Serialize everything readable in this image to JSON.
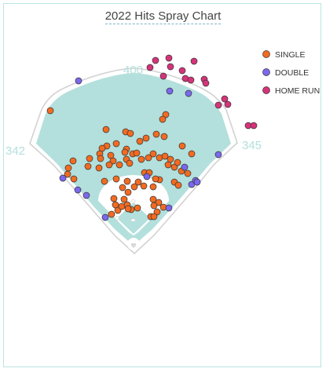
{
  "chart_data": {
    "type": "scatter",
    "title": "2022 Hits Spray Chart",
    "field_distances": {
      "left_field": "342",
      "center_field": "400",
      "right_field": "345"
    },
    "legend_placement": "top-right",
    "colors": {
      "SINGLE": "#f26b21",
      "DOUBLE": "#7b68ee",
      "HOME RUN": "#d6337a",
      "field": "#b3e0dc",
      "frame": "#b9e3e0"
    },
    "series": [
      {
        "name": "SINGLE",
        "points": [
          [
            64,
            141
          ],
          [
            135,
            165
          ],
          [
            160,
            168
          ],
          [
            166,
            170
          ],
          [
            211,
            146
          ],
          [
            207,
            152
          ],
          [
            199,
            171
          ],
          [
            209,
            174
          ],
          [
            232,
            186
          ],
          [
            244,
            196
          ],
          [
            178,
            180
          ],
          [
            186,
            176
          ],
          [
            136,
            186
          ],
          [
            148,
            183
          ],
          [
            161,
            190
          ],
          [
            169,
            196
          ],
          [
            130,
            189
          ],
          [
            127,
            196
          ],
          [
            114,
            202
          ],
          [
            128,
            202
          ],
          [
            141,
            198
          ],
          [
            159,
            194
          ],
          [
            144,
            205
          ],
          [
            139,
            210
          ],
          [
            126,
            214
          ],
          [
            152,
            210
          ],
          [
            161,
            203
          ],
          [
            165,
            208
          ],
          [
            174,
            195
          ],
          [
            180,
            203
          ],
          [
            189,
            201
          ],
          [
            195,
            196
          ],
          [
            203,
            201
          ],
          [
            210,
            199
          ],
          [
            217,
            203
          ],
          [
            214,
            210
          ],
          [
            222,
            213
          ],
          [
            231,
            218
          ],
          [
            239,
            221
          ],
          [
            226,
            207
          ],
          [
            87,
            214
          ],
          [
            93,
            205
          ],
          [
            86,
            222
          ],
          [
            94,
            228
          ],
          [
            112,
            212
          ],
          [
            133,
            231
          ],
          [
            148,
            228
          ],
          [
            162,
            231
          ],
          [
            176,
            232
          ],
          [
            183,
            237
          ],
          [
            195,
            238
          ],
          [
            203,
            229
          ],
          [
            222,
            232
          ],
          [
            227,
            236
          ],
          [
            156,
            239
          ],
          [
            171,
            238
          ],
          [
            163,
            245
          ],
          [
            184,
            220
          ],
          [
            190,
            220
          ],
          [
            198,
            228
          ],
          [
            145,
            253
          ],
          [
            147,
            261
          ],
          [
            142,
            273
          ],
          [
            150,
            268
          ],
          [
            155,
            263
          ],
          [
            158,
            254
          ],
          [
            162,
            261
          ],
          [
            167,
            267
          ],
          [
            195,
            254
          ],
          [
            202,
            258
          ],
          [
            196,
            262
          ],
          [
            208,
            264
          ],
          [
            200,
            270
          ],
          [
            192,
            276
          ],
          [
            196,
            276
          ],
          [
            163,
            266
          ],
          [
            175,
            265
          ]
        ]
      },
      {
        "name": "DOUBLE",
        "points": [
          [
            100,
            103
          ],
          [
            216,
            116
          ],
          [
            240,
            119
          ],
          [
            278,
            197
          ],
          [
            80,
            227
          ],
          [
            99,
            242
          ],
          [
            110,
            249
          ],
          [
            134,
            277
          ],
          [
            187,
            225
          ],
          [
            215,
            265
          ],
          [
            235,
            213
          ],
          [
            244,
            235
          ],
          [
            249,
            230
          ],
          [
            251,
            232
          ]
        ]
      },
      {
        "name": "HOME RUN",
        "points": [
          [
            191,
            86
          ],
          [
            198,
            77
          ],
          [
            215,
            74
          ],
          [
            247,
            78
          ],
          [
            217,
            85
          ],
          [
            208,
            97
          ],
          [
            232,
            90
          ],
          [
            236,
            100
          ],
          [
            243,
            102
          ],
          [
            260,
            101
          ],
          [
            262,
            106
          ],
          [
            286,
            126
          ],
          [
            290,
            133
          ],
          [
            278,
            134
          ],
          [
            316,
            160
          ],
          [
            323,
            160
          ]
        ]
      }
    ]
  }
}
